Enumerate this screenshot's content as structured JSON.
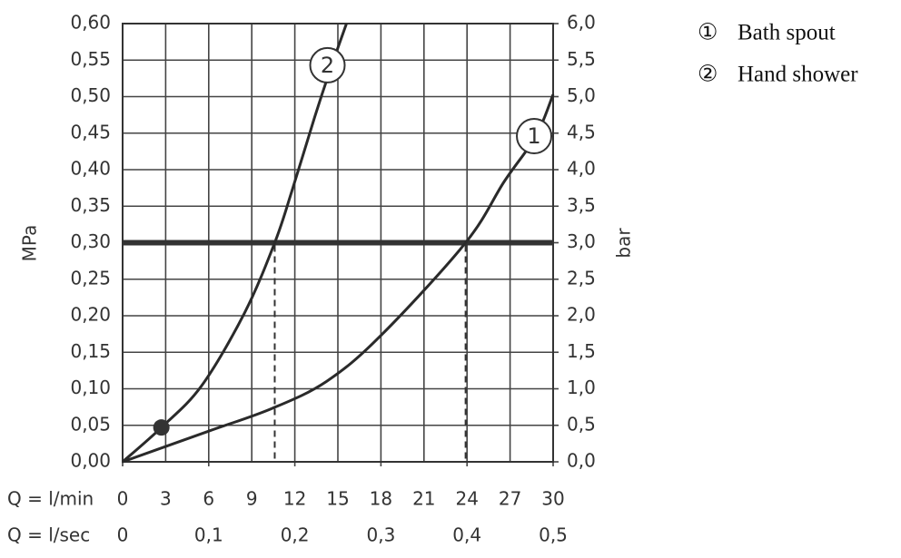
{
  "chart_data": {
    "type": "line",
    "y_label": "MPa",
    "y2_label": "bar",
    "x_label": "Q = l/min",
    "x2_label": "Q = l/sec",
    "xlim": [
      0,
      30
    ],
    "xticks": [
      0,
      3,
      6,
      9,
      12,
      15,
      18,
      21,
      24,
      27,
      30
    ],
    "x2lim": [
      0,
      0.5
    ],
    "x2ticks": [
      0,
      {
        "value": 0.1,
        "label": "0,1"
      },
      {
        "value": 0.2,
        "label": "0,2"
      },
      {
        "value": 0.3,
        "label": "0,3"
      },
      {
        "value": 0.4,
        "label": "0,4"
      },
      {
        "value": 0.5,
        "label": "0,5"
      }
    ],
    "ylim": [
      0,
      0.6
    ],
    "yticks": [
      {
        "value": 0,
        "label": "0,00"
      },
      {
        "value": 0.05,
        "label": "0,05"
      },
      {
        "value": 0.1,
        "label": "0,10"
      },
      {
        "value": 0.15,
        "label": "0,15"
      },
      {
        "value": 0.2,
        "label": "0,20"
      },
      {
        "value": 0.25,
        "label": "0,25"
      },
      {
        "value": 0.3,
        "label": "0,30"
      },
      {
        "value": 0.35,
        "label": "0,35"
      },
      {
        "value": 0.4,
        "label": "0,40"
      },
      {
        "value": 0.45,
        "label": "0,45"
      },
      {
        "value": 0.5,
        "label": "0,50"
      },
      {
        "value": 0.55,
        "label": "0,55"
      },
      {
        "value": 0.6,
        "label": "0,60"
      }
    ],
    "y2lim": [
      0,
      6
    ],
    "y2ticks": [
      {
        "value": 0,
        "label": "0,0"
      },
      {
        "value": 0.5,
        "label": "0,5"
      },
      {
        "value": 1,
        "label": "1,0"
      },
      {
        "value": 1.5,
        "label": "1,5"
      },
      {
        "value": 2,
        "label": "2,0"
      },
      {
        "value": 2.5,
        "label": "2,5"
      },
      {
        "value": 3,
        "label": "3,0"
      },
      {
        "value": 3.5,
        "label": "3,5"
      },
      {
        "value": 4,
        "label": "4,0"
      },
      {
        "value": 4.5,
        "label": "4,5"
      },
      {
        "value": 5,
        "label": "5,0"
      },
      {
        "value": 5.5,
        "label": "5,5"
      },
      {
        "value": 6,
        "label": "6,0"
      }
    ],
    "grid": true,
    "reference_y": 0.3,
    "reference_x": [
      10.6,
      23.9
    ],
    "marker": {
      "x": 2.7,
      "y": 0.047
    },
    "series": [
      {
        "name": "Bath spout",
        "symbol": "①",
        "label": "1",
        "color": "#2a2a2a",
        "x": [
          0,
          6,
          10.4,
          14.2,
          18,
          23.9,
          26.6,
          28.8,
          30
        ],
        "values": [
          0,
          0.042,
          0.073,
          0.11,
          0.173,
          0.3,
          0.384,
          0.446,
          0.503
        ]
      },
      {
        "name": "Hand shower",
        "symbol": "②",
        "label": "2",
        "color": "#2a2a2a",
        "x": [
          0,
          2.7,
          5.5,
          8.5,
          10.6,
          11.8,
          13.4,
          14.4,
          15.6
        ],
        "values": [
          0,
          0.047,
          0.104,
          0.204,
          0.3,
          0.371,
          0.473,
          0.533,
          0.6
        ]
      }
    ]
  }
}
